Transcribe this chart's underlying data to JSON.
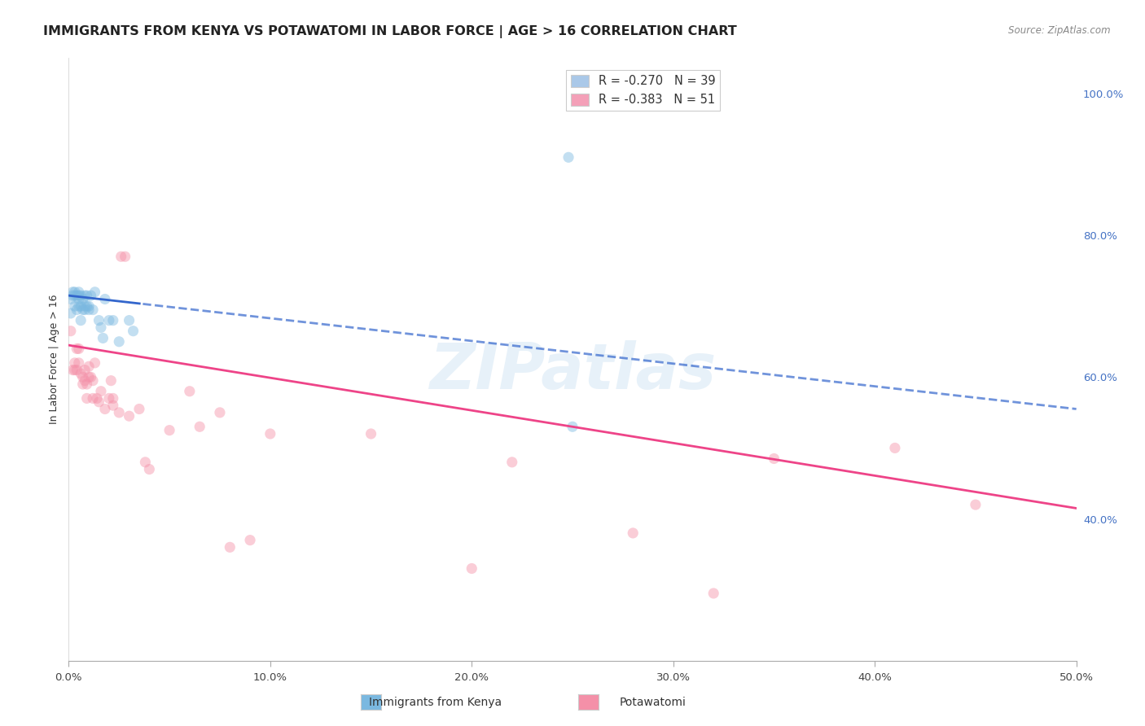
{
  "title": "IMMIGRANTS FROM KENYA VS POTAWATOMI IN LABOR FORCE | AGE > 16 CORRELATION CHART",
  "source": "Source: ZipAtlas.com",
  "ylabel": "In Labor Force | Age > 16",
  "xlim": [
    0.0,
    0.5
  ],
  "ylim": [
    0.2,
    1.05
  ],
  "x_ticks": [
    0.0,
    0.1,
    0.2,
    0.3,
    0.4,
    0.5
  ],
  "x_tick_labels": [
    "0.0%",
    "10.0%",
    "20.0%",
    "30.0%",
    "40.0%",
    "50.0%"
  ],
  "y_ticks_right": [
    0.4,
    0.6,
    0.8,
    1.0
  ],
  "y_tick_labels_right": [
    "40.0%",
    "60.0%",
    "80.0%",
    "100.0%"
  ],
  "background_color": "#ffffff",
  "grid_color": "#cccccc",
  "watermark": "ZIPatlas",
  "legend_entries": [
    {
      "label": "R = -0.270   N = 39",
      "color": "#aac8e8"
    },
    {
      "label": "R = -0.383   N = 51",
      "color": "#f4a0b8"
    }
  ],
  "kenya_color": "#7ab8e0",
  "kenya_edge": "#5a98c8",
  "potawatomi_color": "#f490a8",
  "potawatomi_edge": "#d87090",
  "kenya_line_color": "#3366cc",
  "potawatomi_line_color": "#ee4488",
  "kenya_line_solid": true,
  "potawatomi_line_solid": true,
  "kenya_line_dashed_right": true,
  "kenya_points_x": [
    0.001,
    0.001,
    0.002,
    0.002,
    0.003,
    0.003,
    0.003,
    0.004,
    0.004,
    0.005,
    0.005,
    0.005,
    0.005,
    0.006,
    0.006,
    0.006,
    0.007,
    0.007,
    0.008,
    0.008,
    0.008,
    0.009,
    0.009,
    0.01,
    0.01,
    0.011,
    0.012,
    0.013,
    0.015,
    0.016,
    0.017,
    0.018,
    0.02,
    0.022,
    0.025,
    0.03,
    0.032,
    0.248,
    0.25
  ],
  "kenya_points_y": [
    0.69,
    0.71,
    0.715,
    0.72,
    0.7,
    0.715,
    0.72,
    0.695,
    0.715,
    0.72,
    0.715,
    0.71,
    0.7,
    0.715,
    0.7,
    0.68,
    0.71,
    0.695,
    0.715,
    0.7,
    0.695,
    0.715,
    0.7,
    0.7,
    0.695,
    0.715,
    0.695,
    0.72,
    0.68,
    0.67,
    0.655,
    0.71,
    0.68,
    0.68,
    0.65,
    0.68,
    0.665,
    0.91,
    0.53
  ],
  "potawatomi_points_x": [
    0.001,
    0.002,
    0.003,
    0.003,
    0.004,
    0.004,
    0.005,
    0.005,
    0.006,
    0.007,
    0.007,
    0.008,
    0.008,
    0.009,
    0.009,
    0.01,
    0.01,
    0.011,
    0.012,
    0.012,
    0.013,
    0.014,
    0.015,
    0.016,
    0.018,
    0.02,
    0.021,
    0.022,
    0.022,
    0.025,
    0.026,
    0.028,
    0.03,
    0.035,
    0.038,
    0.04,
    0.05,
    0.06,
    0.065,
    0.075,
    0.08,
    0.09,
    0.1,
    0.15,
    0.2,
    0.22,
    0.28,
    0.32,
    0.35,
    0.41,
    0.45
  ],
  "potawatomi_points_y": [
    0.665,
    0.61,
    0.62,
    0.61,
    0.64,
    0.61,
    0.64,
    0.62,
    0.605,
    0.59,
    0.6,
    0.61,
    0.595,
    0.57,
    0.59,
    0.6,
    0.615,
    0.6,
    0.595,
    0.57,
    0.62,
    0.57,
    0.565,
    0.58,
    0.555,
    0.57,
    0.595,
    0.56,
    0.57,
    0.55,
    0.77,
    0.77,
    0.545,
    0.555,
    0.48,
    0.47,
    0.525,
    0.58,
    0.53,
    0.55,
    0.36,
    0.37,
    0.52,
    0.52,
    0.33,
    0.48,
    0.38,
    0.295,
    0.485,
    0.5,
    0.42
  ],
  "marker_size": 90,
  "marker_alpha": 0.45,
  "title_fontsize": 11.5,
  "axis_label_fontsize": 9,
  "tick_fontsize": 9.5,
  "right_tick_color": "#4472c4",
  "bottom_tick_color": "#444444"
}
